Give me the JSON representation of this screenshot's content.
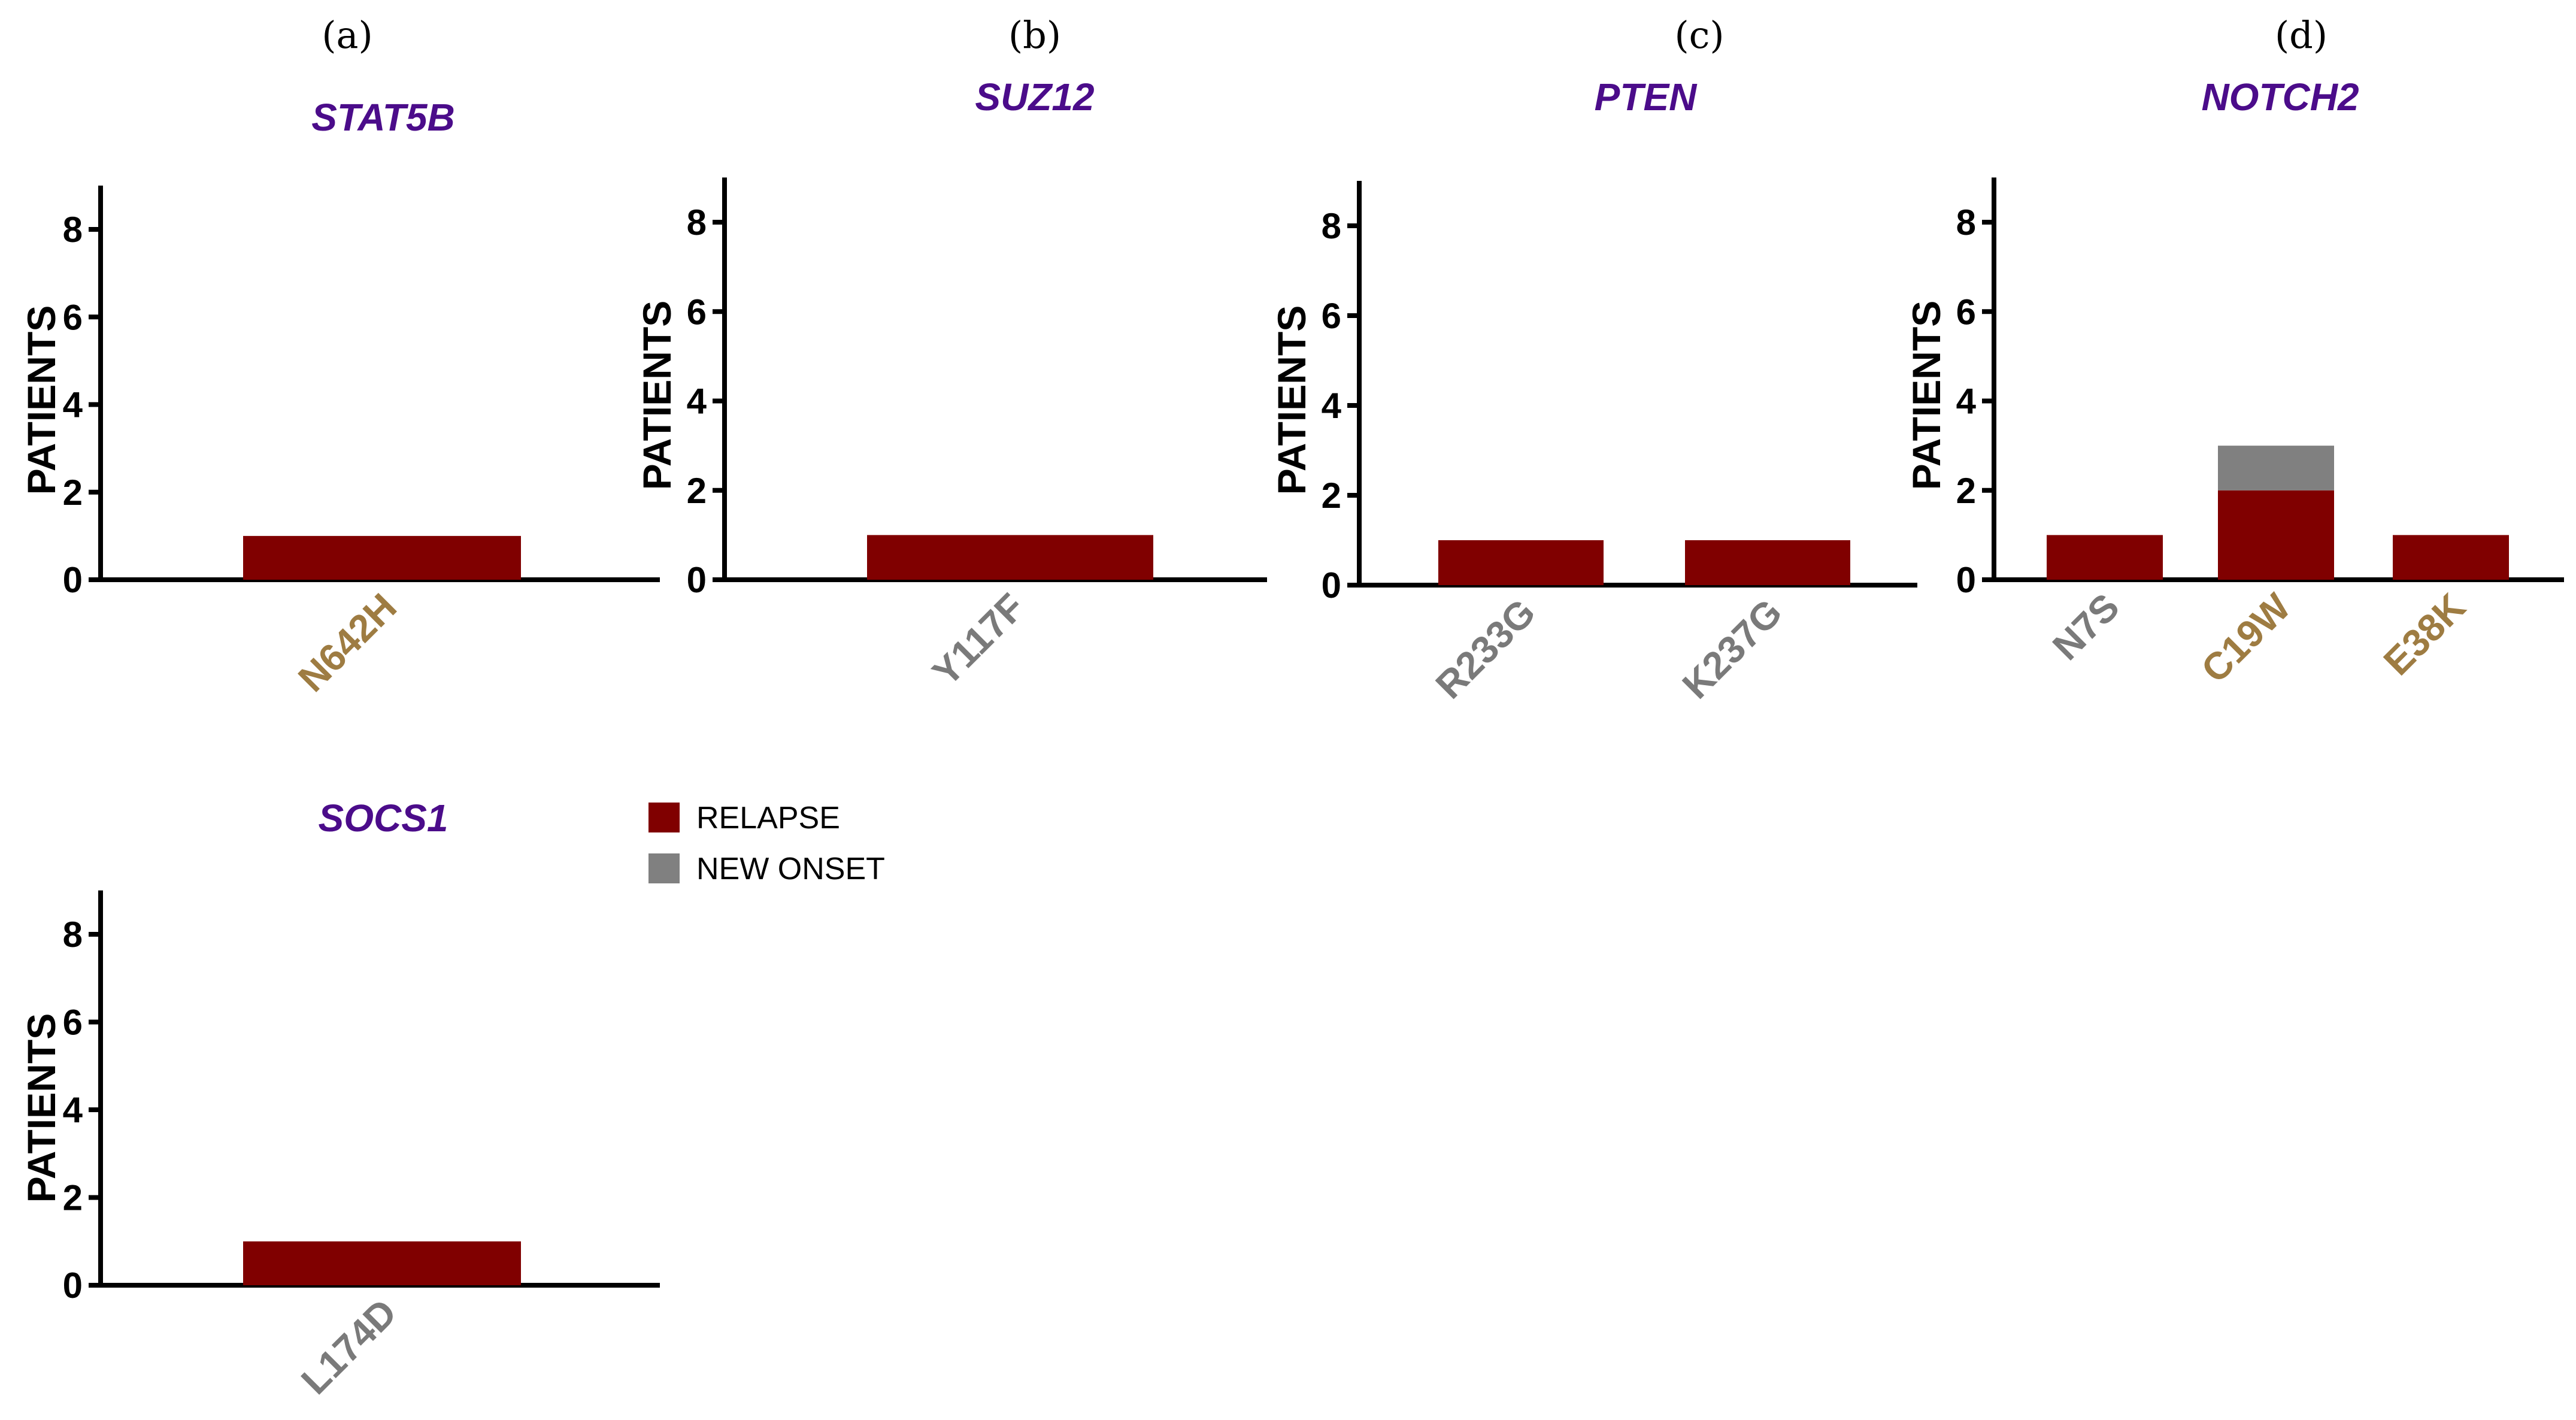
{
  "colors": {
    "relapse": "#800000",
    "new_onset": "#808080",
    "title": "#4B0C8A",
    "label_gold": "#9E7C42",
    "label_gray": "#7A7A7A",
    "axis": "#000000"
  },
  "legend": {
    "items": [
      {
        "label": "RELAPSE",
        "color_key": "relapse"
      },
      {
        "label": "NEW ONSET",
        "color_key": "new_onset"
      }
    ]
  },
  "chart_data": [
    {
      "type": "bar",
      "panel": "(a)",
      "title": "STAT5B",
      "ylabel": "PATIENTS",
      "ylim": [
        0,
        9
      ],
      "yticks": [
        "0",
        "2",
        "4",
        "6",
        "8"
      ],
      "categories": [
        "N642H"
      ],
      "category_colors": [
        "label_gold"
      ],
      "series": [
        {
          "name": "RELAPSE",
          "values": [
            1
          ]
        },
        {
          "name": "NEW ONSET",
          "values": [
            0
          ]
        }
      ]
    },
    {
      "type": "bar",
      "panel": "(b)",
      "title": "SUZ12",
      "ylabel": "PATIENTS",
      "ylim": [
        0,
        9
      ],
      "yticks": [
        "0",
        "2",
        "4",
        "6",
        "8"
      ],
      "categories": [
        "Y117F"
      ],
      "category_colors": [
        "label_gray"
      ],
      "series": [
        {
          "name": "RELAPSE",
          "values": [
            1
          ]
        },
        {
          "name": "NEW ONSET",
          "values": [
            0
          ]
        }
      ]
    },
    {
      "type": "bar",
      "panel": "(c)",
      "title": "PTEN",
      "ylabel": "PATIENTS",
      "ylim": [
        0,
        9
      ],
      "yticks": [
        "0",
        "2",
        "4",
        "6",
        "8"
      ],
      "categories": [
        "R233G",
        "K237G"
      ],
      "category_colors": [
        "label_gray",
        "label_gray"
      ],
      "series": [
        {
          "name": "RELAPSE",
          "values": [
            1,
            1
          ]
        },
        {
          "name": "NEW ONSET",
          "values": [
            0,
            0
          ]
        }
      ]
    },
    {
      "type": "bar",
      "panel": "(d)",
      "title": "NOTCH2",
      "ylabel": "PATIENTS",
      "ylim": [
        0,
        9
      ],
      "yticks": [
        "0",
        "2",
        "4",
        "6",
        "8"
      ],
      "categories": [
        "N7S",
        "C19W",
        "E38K"
      ],
      "category_colors": [
        "label_gray",
        "label_gold",
        "label_gold"
      ],
      "series": [
        {
          "name": "RELAPSE",
          "values": [
            1,
            2,
            1
          ]
        },
        {
          "name": "NEW ONSET",
          "values": [
            0,
            1,
            0
          ]
        }
      ]
    },
    {
      "type": "bar",
      "panel": "",
      "title": "SOCS1",
      "ylabel": "PATIENTS",
      "ylim": [
        0,
        9
      ],
      "yticks": [
        "0",
        "2",
        "4",
        "6",
        "8"
      ],
      "categories": [
        "L174D"
      ],
      "category_colors": [
        "label_gray"
      ],
      "series": [
        {
          "name": "RELAPSE",
          "values": [
            1
          ]
        },
        {
          "name": "NEW ONSET",
          "values": [
            0
          ]
        }
      ]
    }
  ]
}
